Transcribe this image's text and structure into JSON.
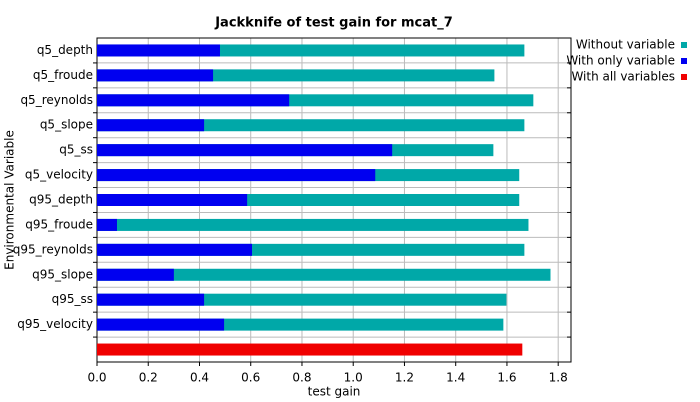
{
  "chart_data": {
    "type": "bar",
    "orientation": "horizontal",
    "overlay": true,
    "title": "Jackknife of test gain for mcat_7",
    "x_label": "test gain",
    "y_label": "Environmental Variable",
    "categories": [
      "q5_depth",
      "q5_froude",
      "q5_reynolds",
      "q5_slope",
      "q5_ss",
      "q5_velocity",
      "q95_depth",
      "q95_froude",
      "q95_reynolds",
      "q95_slope",
      "q95_ss",
      "q95_velocity",
      null
    ],
    "series": [
      {
        "name": "Without variable",
        "color": "#00a8a8",
        "values": [
          1.668,
          1.551,
          1.703,
          1.668,
          1.547,
          1.648,
          1.648,
          1.684,
          1.668,
          1.77,
          1.598,
          1.586,
          null
        ]
      },
      {
        "name": "With only variable",
        "color": "#0000f0",
        "values": [
          0.48,
          0.453,
          0.75,
          0.418,
          1.152,
          1.086,
          0.586,
          0.078,
          0.605,
          0.3,
          0.418,
          0.496,
          null
        ]
      },
      {
        "name": "With all variables",
        "color": "#f00000",
        "values": [
          null,
          null,
          null,
          null,
          null,
          null,
          null,
          null,
          null,
          null,
          null,
          null,
          1.66
        ]
      }
    ],
    "xlim": [
      0,
      1.85
    ],
    "xticks": [
      {
        "value": 0,
        "label": "0.0"
      },
      0.2,
      0.4,
      0.6,
      0.8,
      {
        "value": 1,
        "label": "1.0"
      },
      1.2,
      1.4,
      1.6,
      1.8
    ],
    "grid": true,
    "legend": "top-right"
  }
}
